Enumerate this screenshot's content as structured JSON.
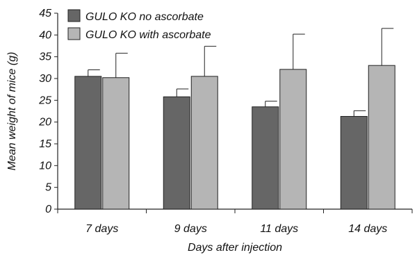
{
  "chart_data": {
    "type": "bar",
    "title": "",
    "xlabel": "Days after injection",
    "ylabel": "Mean weight of mice (g)",
    "categories": [
      "7 days",
      "9 days",
      "11 days",
      "14 days"
    ],
    "ylim": [
      0,
      45
    ],
    "yticks": [
      0,
      5,
      10,
      15,
      20,
      25,
      30,
      35,
      40,
      45
    ],
    "grid": false,
    "legend_position": "top-left",
    "series": [
      {
        "name": "GULO KO no ascorbate",
        "color": "#666666",
        "values": [
          30.5,
          25.8,
          23.5,
          21.3
        ],
        "error_upper": [
          32.0,
          27.6,
          24.8,
          22.6
        ]
      },
      {
        "name": "GULO KO with ascorbate",
        "color": "#b5b5b5",
        "values": [
          30.2,
          30.5,
          32.1,
          33.0
        ],
        "error_upper": [
          35.8,
          37.4,
          40.2,
          41.5
        ]
      }
    ]
  }
}
